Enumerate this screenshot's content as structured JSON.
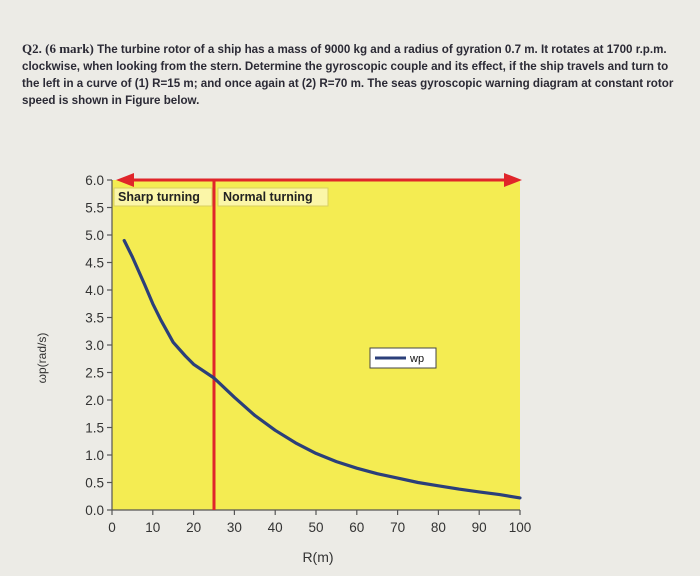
{
  "question": {
    "number": "Q2. (6 mark)",
    "text": "The turbine rotor of a ship has a mass of 9000 kg and a radius of gyration 0.7 m. It rotates at 1700 r.p.m. clockwise, when looking from the stern. Determine the gyroscopic couple and its effect, if the ship travels and turn to the left in a curve of (1) R=15 m; and once again at (2) R=70 m. The seas gyroscopic warning diagram at constant rotor speed is shown in Figure below."
  },
  "chart_data": {
    "type": "line",
    "xlabel": "R(m)",
    "ylabel": "ωp(rad/s)",
    "xlim": [
      0,
      100
    ],
    "ylim": [
      0,
      6
    ],
    "x_ticks": [
      "0",
      "10",
      "20",
      "30",
      "40",
      "50",
      "60",
      "70",
      "80",
      "90",
      "100"
    ],
    "y_ticks": [
      "0.0",
      "0.5",
      "1.0",
      "1.5",
      "2.0",
      "2.5",
      "3.0",
      "3.5",
      "4.0",
      "4.5",
      "5.0",
      "5.5",
      "6.0"
    ],
    "grid": false,
    "legend": "middle-right",
    "series": [
      {
        "name": "wp",
        "color": "#2b3f7a",
        "x": [
          3,
          5,
          8,
          10,
          12,
          15,
          18,
          20,
          25,
          30,
          35,
          40,
          45,
          50,
          55,
          60,
          65,
          70,
          75,
          80,
          85,
          90,
          95,
          100
        ],
        "y": [
          4.9,
          4.6,
          4.1,
          3.75,
          3.45,
          3.05,
          2.8,
          2.65,
          2.4,
          2.05,
          1.72,
          1.45,
          1.22,
          1.03,
          0.88,
          0.76,
          0.66,
          0.58,
          0.5,
          0.44,
          0.38,
          0.33,
          0.28,
          0.22
        ]
      }
    ],
    "annotations": {
      "boundary_x": 25,
      "boundary_color": "#e0252a",
      "sharp_label": "Sharp turning",
      "normal_label": "Normal turning",
      "arrow_color": "#e0252a",
      "arrow_y": 6.0
    },
    "plot_background": "#f4ec52"
  }
}
